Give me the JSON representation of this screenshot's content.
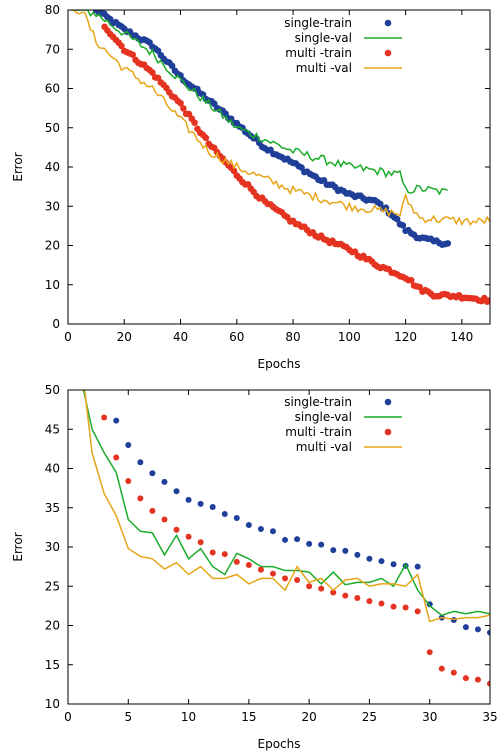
{
  "chart_data": [
    {
      "type": "line",
      "xlabel": "Epochs",
      "ylabel": "Error",
      "xlim": [
        0,
        150
      ],
      "ylim": [
        0,
        80
      ],
      "xticks": [
        0,
        20,
        40,
        60,
        80,
        100,
        120,
        140
      ],
      "yticks": [
        0,
        10,
        20,
        30,
        40,
        50,
        60,
        70,
        80
      ],
      "legend_position": "top-right",
      "grid": false,
      "series": [
        {
          "name": "single-train",
          "style": "points",
          "color": "#1f3f99",
          "keypoints": [
            [
              10,
              80
            ],
            [
              20,
              75
            ],
            [
              30,
              71
            ],
            [
              40,
              63
            ],
            [
              50,
              57
            ],
            [
              60,
              51
            ],
            [
              70,
              45
            ],
            [
              80,
              41
            ],
            [
              90,
              36.5
            ],
            [
              100,
              33
            ],
            [
              110,
              31
            ],
            [
              115,
              28
            ],
            [
              120,
              24
            ],
            [
              125,
              22
            ],
            [
              130,
              21
            ],
            [
              135,
              20.5
            ]
          ]
        },
        {
          "name": "single-val",
          "style": "line",
          "color": "#1aab2a",
          "keypoints": [
            [
              1,
              80
            ],
            [
              5,
              80
            ],
            [
              10,
              79
            ],
            [
              20,
              74
            ],
            [
              30,
              69
            ],
            [
              40,
              62
            ],
            [
              50,
              56
            ],
            [
              60,
              50
            ],
            [
              70,
              47
            ],
            [
              80,
              44
            ],
            [
              90,
              42
            ],
            [
              100,
              40
            ],
            [
              110,
              39
            ],
            [
              118,
              38
            ],
            [
              120,
              34
            ],
            [
              125,
              34.5
            ],
            [
              130,
              34
            ],
            [
              135,
              33.5
            ]
          ]
        },
        {
          "name": "multi -train",
          "style": "points",
          "color": "#e53321",
          "keypoints": [
            [
              13,
              76
            ],
            [
              20,
              70
            ],
            [
              30,
              64
            ],
            [
              40,
              56
            ],
            [
              50,
              46
            ],
            [
              60,
              38
            ],
            [
              70,
              31
            ],
            [
              80,
              26
            ],
            [
              90,
              22
            ],
            [
              100,
              19
            ],
            [
              110,
              15
            ],
            [
              120,
              12
            ],
            [
              125,
              9
            ],
            [
              130,
              7.5
            ],
            [
              140,
              7
            ],
            [
              150,
              6
            ]
          ]
        },
        {
          "name": "multi -val",
          "style": "line",
          "color": "#e6a519",
          "keypoints": [
            [
              1,
              80
            ],
            [
              5,
              80
            ],
            [
              10,
              72
            ],
            [
              20,
              65
            ],
            [
              30,
              60
            ],
            [
              40,
              52
            ],
            [
              50,
              44
            ],
            [
              60,
              40
            ],
            [
              70,
              37
            ],
            [
              80,
              34
            ],
            [
              90,
              32
            ],
            [
              100,
              30
            ],
            [
              110,
              29
            ],
            [
              118,
              28
            ],
            [
              120,
              32
            ],
            [
              125,
              27
            ],
            [
              135,
              26.5
            ],
            [
              145,
              26
            ],
            [
              150,
              26.5
            ]
          ]
        }
      ]
    },
    {
      "type": "line",
      "xlabel": "Epochs",
      "ylabel": "Error",
      "xlim": [
        0,
        35
      ],
      "ylim": [
        10,
        50
      ],
      "xticks": [
        0,
        5,
        10,
        15,
        20,
        25,
        30,
        35
      ],
      "yticks": [
        10,
        15,
        20,
        25,
        30,
        35,
        40,
        45,
        50
      ],
      "legend_position": "top-right",
      "grid": false,
      "series": [
        {
          "name": "single-train",
          "style": "points",
          "color": "#1f3f99",
          "x": [
            4,
            5,
            6,
            7,
            8,
            9,
            10,
            11,
            12,
            13,
            14,
            15,
            16,
            17,
            18,
            19,
            20,
            21,
            22,
            23,
            24,
            25,
            26,
            27,
            28,
            29,
            30,
            31,
            32,
            33,
            34,
            35
          ],
          "values": [
            46.1,
            43.0,
            40.8,
            39.4,
            38.3,
            37.1,
            36.0,
            35.5,
            35.1,
            34.2,
            33.7,
            32.8,
            32.3,
            32.0,
            30.9,
            31.0,
            30.4,
            30.3,
            29.6,
            29.5,
            29.0,
            28.5,
            28.2,
            27.8,
            27.6,
            27.5,
            22.7,
            21.0,
            20.7,
            19.8,
            19.5,
            19.1
          ]
        },
        {
          "name": "single-val",
          "style": "line",
          "color": "#1aab2a",
          "x": [
            1,
            2,
            3,
            4,
            5,
            6,
            7,
            8,
            9,
            10,
            11,
            12,
            13,
            14,
            15,
            16,
            17,
            18,
            19,
            20,
            21,
            22,
            23,
            24,
            25,
            26,
            27,
            28,
            29,
            30,
            31,
            32,
            33,
            34,
            35
          ],
          "values": [
            52,
            45,
            42,
            39.5,
            33.5,
            32,
            31.8,
            29,
            31.5,
            28.5,
            29.8,
            27.5,
            26.5,
            29.2,
            28.5,
            27.5,
            27.5,
            27,
            27,
            26.8,
            25.3,
            26.8,
            25.2,
            25.5,
            25.5,
            26,
            25,
            27.8,
            24.5,
            22.5,
            21.3,
            21.8,
            21.5,
            21.8,
            21.5
          ]
        },
        {
          "name": "multi -train",
          "style": "points",
          "color": "#e53321",
          "x": [
            3,
            4,
            5,
            6,
            7,
            8,
            9,
            10,
            11,
            12,
            13,
            14,
            15,
            16,
            17,
            18,
            19,
            20,
            21,
            22,
            23,
            24,
            25,
            26,
            27,
            28,
            29,
            30,
            31,
            32,
            33,
            34,
            35
          ],
          "values": [
            46.5,
            41.4,
            38.4,
            36.2,
            34.6,
            33.5,
            32.2,
            31.3,
            30.6,
            29.3,
            29.1,
            28.1,
            27.7,
            27.1,
            26.6,
            26.0,
            25.8,
            25.0,
            24.7,
            24.2,
            23.8,
            23.5,
            23.1,
            22.8,
            22.4,
            22.3,
            21.8,
            16.6,
            14.5,
            14.0,
            13.3,
            13.1,
            12.6
          ]
        },
        {
          "name": "multi -val",
          "style": "line",
          "color": "#e6a519",
          "x": [
            1,
            2,
            3,
            4,
            5,
            6,
            7,
            8,
            9,
            10,
            11,
            12,
            13,
            14,
            15,
            16,
            17,
            18,
            19,
            20,
            21,
            22,
            23,
            24,
            25,
            26,
            27,
            28,
            29,
            30,
            31,
            32,
            33,
            34,
            35
          ],
          "values": [
            55,
            42,
            36.8,
            34,
            29.8,
            28.8,
            28.5,
            27.2,
            28,
            26.5,
            27.5,
            26,
            26,
            26.5,
            25.3,
            26,
            26,
            24.5,
            27.5,
            25.5,
            26,
            24.5,
            25.8,
            26,
            25,
            25.3,
            25.3,
            25,
            26.5,
            20.5,
            21,
            20.8,
            21,
            21,
            21.3
          ]
        }
      ]
    }
  ]
}
